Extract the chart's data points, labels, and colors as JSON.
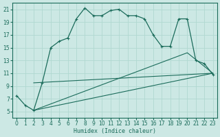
{
  "xlabel": "Humidex (Indice chaleur)",
  "bg_color": "#cce8e4",
  "line_color": "#1a6b5a",
  "grid_color": "#b0d8d0",
  "xlim": [
    -0.5,
    23.5
  ],
  "ylim": [
    4,
    22
  ],
  "yticks": [
    5,
    7,
    9,
    11,
    13,
    15,
    17,
    19,
    21
  ],
  "xticks": [
    0,
    1,
    2,
    3,
    4,
    5,
    6,
    7,
    8,
    9,
    10,
    11,
    12,
    13,
    14,
    15,
    16,
    17,
    18,
    19,
    20,
    21,
    22,
    23
  ],
  "curve1_x": [
    0,
    1,
    2,
    3,
    4,
    5,
    6,
    7,
    8,
    9,
    10,
    11,
    12,
    13,
    14,
    15,
    16,
    17,
    18,
    19,
    20,
    21,
    22,
    23
  ],
  "curve1_y": [
    7.5,
    6.0,
    5.2,
    9.5,
    15.0,
    16.0,
    16.5,
    19.5,
    21.2,
    20.0,
    20.0,
    20.8,
    21.0,
    20.0,
    20.0,
    19.5,
    17.0,
    15.2,
    15.2,
    19.5,
    19.5,
    13.0,
    12.5,
    10.8
  ],
  "curve2_x": [
    2,
    23
  ],
  "curve2_y": [
    9.5,
    11.0
  ],
  "curve3_x": [
    2,
    20,
    23
  ],
  "curve3_y": [
    5.2,
    14.2,
    11.0
  ],
  "curve4_x": [
    2,
    23
  ],
  "curve4_y": [
    5.2,
    11.0
  ]
}
